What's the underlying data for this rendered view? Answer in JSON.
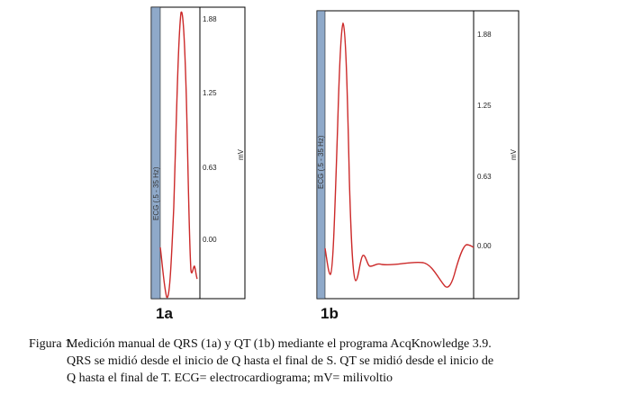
{
  "panels": [
    {
      "label": "1a",
      "channel_label": "ECG (.5 - 35 Hz)",
      "unit": "mV",
      "ticks": [
        "1.88",
        "1.25",
        "0.63",
        "0.00"
      ]
    },
    {
      "label": "1b",
      "channel_label": "ECG (.5 - 35 Hz)",
      "unit": "mV",
      "ticks": [
        "1.88",
        "1.25",
        "0.63",
        "0.00"
      ]
    }
  ],
  "caption": {
    "label": "Figura 1.",
    "line1": "Medición manual de QRS (1a) y QT (1b) mediante el programa AcqKnowledge 3.9.",
    "line2": "QRS se midió desde el inicio de Q hasta el final de S. QT se midió desde el inicio de",
    "line3": "Q hasta el final de T. ECG= electrocardiograma; mV= milivoltio"
  },
  "colors": {
    "trace": "#cc2a2a",
    "channel_strip": "#8fa9c9",
    "axis": "#000000"
  }
}
